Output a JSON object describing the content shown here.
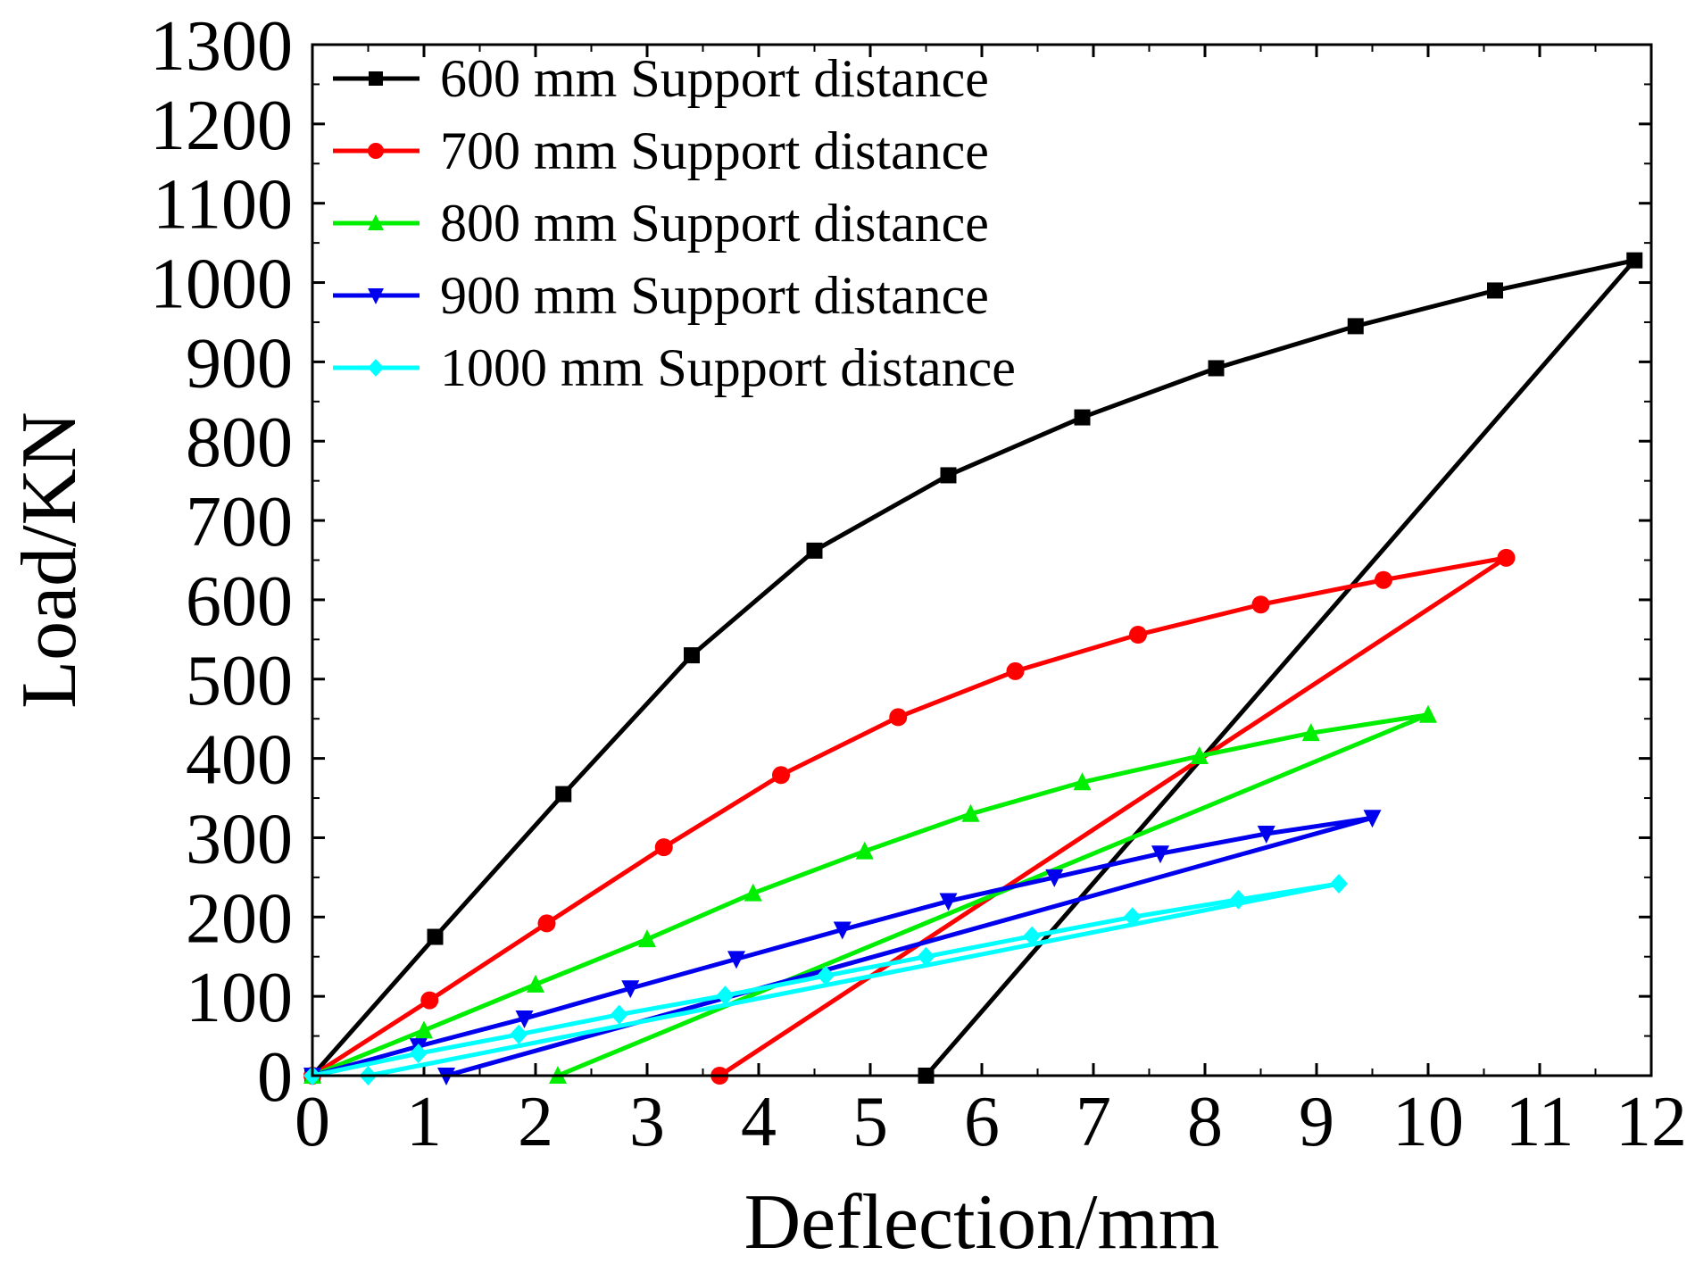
{
  "chart_data": {
    "type": "line",
    "title": "",
    "xlabel": "Deflection/mm",
    "ylabel": "Load/KN",
    "xlim": [
      0,
      12
    ],
    "ylim": [
      0,
      1300
    ],
    "xticks": [
      0,
      1,
      2,
      3,
      4,
      5,
      6,
      7,
      8,
      9,
      10,
      11,
      12
    ],
    "yticks": [
      0,
      100,
      200,
      300,
      400,
      500,
      600,
      700,
      800,
      900,
      1000,
      1100,
      1200,
      1300
    ],
    "legend_position": "top-left",
    "series": [
      {
        "name": "600 mm Support distance",
        "color": "#000000",
        "marker": "square",
        "x": [
          0,
          1.1,
          2.25,
          3.4,
          4.5,
          5.7,
          6.9,
          8.1,
          9.35,
          10.6,
          11.85,
          5.5
        ],
        "y": [
          0,
          175,
          355,
          530,
          662,
          757,
          830,
          892,
          945,
          990,
          1028,
          0
        ]
      },
      {
        "name": "700 mm Support distance",
        "color": "#ff0000",
        "marker": "circle",
        "x": [
          0,
          1.05,
          2.1,
          3.15,
          4.2,
          5.25,
          6.3,
          7.4,
          8.5,
          9.6,
          10.7,
          3.65
        ],
        "y": [
          0,
          95,
          192,
          288,
          379,
          452,
          510,
          556,
          594,
          625,
          653,
          0
        ]
      },
      {
        "name": "800 mm Support distance",
        "color": "#00ee00",
        "marker": "triangle-up",
        "x": [
          0,
          1.0,
          2.0,
          3.0,
          3.95,
          4.95,
          5.9,
          6.9,
          7.95,
          8.95,
          10.0,
          2.2
        ],
        "y": [
          0,
          57,
          115,
          172,
          230,
          283,
          330,
          370,
          403,
          432,
          455,
          0
        ]
      },
      {
        "name": "900 mm Support distance",
        "color": "#0000ee",
        "marker": "triangle-down",
        "x": [
          0,
          0.95,
          1.9,
          2.85,
          3.8,
          4.75,
          5.7,
          6.65,
          7.6,
          8.55,
          9.5,
          1.2
        ],
        "y": [
          0,
          37,
          72,
          110,
          147,
          184,
          220,
          250,
          280,
          305,
          325,
          0
        ]
      },
      {
        "name": "1000 mm Support distance",
        "color": "#00ffff",
        "marker": "diamond",
        "x": [
          0,
          0.95,
          1.85,
          2.75,
          3.7,
          4.6,
          5.5,
          6.45,
          7.35,
          8.3,
          9.2,
          0.5
        ],
        "y": [
          0,
          28,
          52,
          77,
          101,
          126,
          150,
          176,
          200,
          222,
          242,
          0
        ]
      }
    ]
  }
}
